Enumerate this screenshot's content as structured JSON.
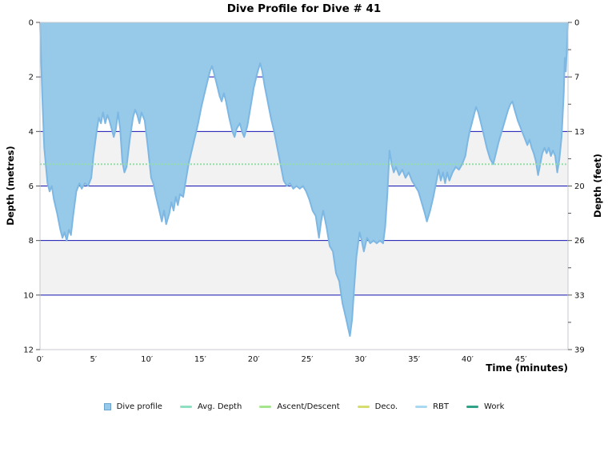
{
  "chart_data": {
    "type": "area",
    "title": "Dive Profile for Dive # 41",
    "xlabel": "Time (minutes)",
    "ylabel_left": "Depth (metres)",
    "ylabel_right": "Depth (feet)",
    "xlim": [
      0,
      49.4
    ],
    "ylim_metres": [
      0,
      12
    ],
    "y_axis_inverted": true,
    "x_tick_values": [
      0,
      5,
      10,
      15,
      20,
      25,
      30,
      35,
      40,
      45
    ],
    "x_tick_labels": [
      "0′",
      "5′",
      "10′",
      "15′",
      "20′",
      "25′",
      "30′",
      "35′",
      "40′",
      "45′"
    ],
    "y_tick_metres": [
      0,
      2,
      4,
      6,
      8,
      10,
      12
    ],
    "y_tick_feet_labels": [
      "0",
      "7",
      "13",
      "20",
      "26",
      "33",
      "39"
    ],
    "y_minor_tick_metres": [
      1,
      3,
      5,
      7,
      9,
      11
    ],
    "gridlines_m": [
      2,
      4,
      6,
      8,
      10
    ],
    "bands_m": [
      [
        4,
        6
      ],
      [
        8,
        10
      ]
    ],
    "avg_depth_m": 5.2,
    "grid": "horizontal-only",
    "legend_position": "bottom-center",
    "colors": {
      "profile_fill": "#97c9e8",
      "profile_line": "#7db7e3",
      "gridline": "#1212b0",
      "band": "#f2f2f2",
      "avg_depth_line": "#94dfa8",
      "plot_border": "#c5c9cf",
      "tick_text": "#111111"
    },
    "legend": [
      {
        "label": "Dive profile",
        "type": "square",
        "color": "#97c9e8",
        "border": "#68a2cd"
      },
      {
        "label": "Avg. Depth",
        "type": "line",
        "color": "#8fe0c0"
      },
      {
        "label": "Ascent/Descent",
        "type": "line",
        "color": "#a5e58d"
      },
      {
        "label": "Deco.",
        "type": "line",
        "color": "#d6dc6e"
      },
      {
        "label": "RBT",
        "type": "line",
        "color": "#a9d9f2"
      },
      {
        "label": "Work",
        "type": "line",
        "color": "#2fa287"
      }
    ],
    "series": [
      {
        "name": "Dive profile",
        "x_unit": "minutes",
        "y_unit": "metres",
        "points": [
          [
            0,
            0
          ],
          [
            0.2,
            2.6
          ],
          [
            0.4,
            4.6
          ],
          [
            0.7,
            5.9
          ],
          [
            0.9,
            6.2
          ],
          [
            1.1,
            6.0
          ],
          [
            1.3,
            6.5
          ],
          [
            1.6,
            7.0
          ],
          [
            1.9,
            7.6
          ],
          [
            2.1,
            7.9
          ],
          [
            2.3,
            7.7
          ],
          [
            2.5,
            8.0
          ],
          [
            2.7,
            7.6
          ],
          [
            2.9,
            7.8
          ],
          [
            3.1,
            7.1
          ],
          [
            3.4,
            6.2
          ],
          [
            3.7,
            5.9
          ],
          [
            3.9,
            6.1
          ],
          [
            4.2,
            5.9
          ],
          [
            4.5,
            6.0
          ],
          [
            4.8,
            5.7
          ],
          [
            5.0,
            4.9
          ],
          [
            5.3,
            4.0
          ],
          [
            5.5,
            3.5
          ],
          [
            5.7,
            3.7
          ],
          [
            5.9,
            3.3
          ],
          [
            6.1,
            3.7
          ],
          [
            6.3,
            3.4
          ],
          [
            6.5,
            3.6
          ],
          [
            6.7,
            3.9
          ],
          [
            6.9,
            4.2
          ],
          [
            7.1,
            3.9
          ],
          [
            7.3,
            3.3
          ],
          [
            7.5,
            3.9
          ],
          [
            7.7,
            5.1
          ],
          [
            7.9,
            5.5
          ],
          [
            8.1,
            5.3
          ],
          [
            8.4,
            4.3
          ],
          [
            8.7,
            3.5
          ],
          [
            8.9,
            3.2
          ],
          [
            9.1,
            3.4
          ],
          [
            9.3,
            3.7
          ],
          [
            9.5,
            3.3
          ],
          [
            9.8,
            3.6
          ],
          [
            10.1,
            4.6
          ],
          [
            10.4,
            5.7
          ],
          [
            10.6,
            5.9
          ],
          [
            10.8,
            6.3
          ],
          [
            11.1,
            6.8
          ],
          [
            11.4,
            7.3
          ],
          [
            11.6,
            6.9
          ],
          [
            11.8,
            7.4
          ],
          [
            12.1,
            7.0
          ],
          [
            12.3,
            6.6
          ],
          [
            12.5,
            6.9
          ],
          [
            12.7,
            6.4
          ],
          [
            12.9,
            6.7
          ],
          [
            13.1,
            6.3
          ],
          [
            13.4,
            6.4
          ],
          [
            13.6,
            5.9
          ],
          [
            13.9,
            5.2
          ],
          [
            14.2,
            4.7
          ],
          [
            14.5,
            4.2
          ],
          [
            14.8,
            3.7
          ],
          [
            15.1,
            3.1
          ],
          [
            15.4,
            2.6
          ],
          [
            15.7,
            2.1
          ],
          [
            15.9,
            1.8
          ],
          [
            16.1,
            1.6
          ],
          [
            16.3,
            1.9
          ],
          [
            16.5,
            2.2
          ],
          [
            16.8,
            2.7
          ],
          [
            17.0,
            2.9
          ],
          [
            17.2,
            2.6
          ],
          [
            17.4,
            2.9
          ],
          [
            17.7,
            3.5
          ],
          [
            18.0,
            4.0
          ],
          [
            18.2,
            4.2
          ],
          [
            18.4,
            3.9
          ],
          [
            18.7,
            3.7
          ],
          [
            18.9,
            4.0
          ],
          [
            19.1,
            4.2
          ],
          [
            19.4,
            3.8
          ],
          [
            19.7,
            3.1
          ],
          [
            20.0,
            2.4
          ],
          [
            20.3,
            1.9
          ],
          [
            20.6,
            1.5
          ],
          [
            20.8,
            1.8
          ],
          [
            21.0,
            2.3
          ],
          [
            21.3,
            2.9
          ],
          [
            21.6,
            3.5
          ],
          [
            21.9,
            4.0
          ],
          [
            22.2,
            4.6
          ],
          [
            22.5,
            5.2
          ],
          [
            22.8,
            5.8
          ],
          [
            23.1,
            6.0
          ],
          [
            23.4,
            5.9
          ],
          [
            23.7,
            6.1
          ],
          [
            24.0,
            6.0
          ],
          [
            24.3,
            6.1
          ],
          [
            24.6,
            6.0
          ],
          [
            24.9,
            6.2
          ],
          [
            25.2,
            6.5
          ],
          [
            25.5,
            6.9
          ],
          [
            25.8,
            7.1
          ],
          [
            26.1,
            7.9
          ],
          [
            26.3,
            7.3
          ],
          [
            26.5,
            6.9
          ],
          [
            26.8,
            7.5
          ],
          [
            27.1,
            8.2
          ],
          [
            27.4,
            8.4
          ],
          [
            27.7,
            9.2
          ],
          [
            28.0,
            9.5
          ],
          [
            28.3,
            10.3
          ],
          [
            28.6,
            10.8
          ],
          [
            29.0,
            11.5
          ],
          [
            29.2,
            10.9
          ],
          [
            29.4,
            9.7
          ],
          [
            29.6,
            8.6
          ],
          [
            29.9,
            7.7
          ],
          [
            30.1,
            8.0
          ],
          [
            30.3,
            8.4
          ],
          [
            30.6,
            7.9
          ],
          [
            30.9,
            8.1
          ],
          [
            31.2,
            8.0
          ],
          [
            31.5,
            8.1
          ],
          [
            31.8,
            8.0
          ],
          [
            32.1,
            8.1
          ],
          [
            32.3,
            7.5
          ],
          [
            32.5,
            6.3
          ],
          [
            32.7,
            4.7
          ],
          [
            32.9,
            5.2
          ],
          [
            33.1,
            5.5
          ],
          [
            33.3,
            5.3
          ],
          [
            33.6,
            5.6
          ],
          [
            33.9,
            5.4
          ],
          [
            34.2,
            5.7
          ],
          [
            34.5,
            5.5
          ],
          [
            34.8,
            5.8
          ],
          [
            35.1,
            6.0
          ],
          [
            35.4,
            6.2
          ],
          [
            35.7,
            6.6
          ],
          [
            36.0,
            7.0
          ],
          [
            36.2,
            7.3
          ],
          [
            36.5,
            6.9
          ],
          [
            36.8,
            6.4
          ],
          [
            37.1,
            5.8
          ],
          [
            37.3,
            5.4
          ],
          [
            37.5,
            5.8
          ],
          [
            37.7,
            5.5
          ],
          [
            37.9,
            5.9
          ],
          [
            38.1,
            5.5
          ],
          [
            38.3,
            5.8
          ],
          [
            38.6,
            5.5
          ],
          [
            38.9,
            5.3
          ],
          [
            39.2,
            5.4
          ],
          [
            39.5,
            5.2
          ],
          [
            39.8,
            4.9
          ],
          [
            40.0,
            4.4
          ],
          [
            40.2,
            4.0
          ],
          [
            40.4,
            3.7
          ],
          [
            40.6,
            3.4
          ],
          [
            40.8,
            3.1
          ],
          [
            41.0,
            3.3
          ],
          [
            41.2,
            3.6
          ],
          [
            41.5,
            4.1
          ],
          [
            41.8,
            4.6
          ],
          [
            42.1,
            5.0
          ],
          [
            42.4,
            5.2
          ],
          [
            42.6,
            4.9
          ],
          [
            42.9,
            4.4
          ],
          [
            43.2,
            4.0
          ],
          [
            43.5,
            3.6
          ],
          [
            43.8,
            3.2
          ],
          [
            44.0,
            3.0
          ],
          [
            44.2,
            2.9
          ],
          [
            44.4,
            3.2
          ],
          [
            44.7,
            3.6
          ],
          [
            45.0,
            3.9
          ],
          [
            45.3,
            4.2
          ],
          [
            45.6,
            4.5
          ],
          [
            45.8,
            4.3
          ],
          [
            46.0,
            4.6
          ],
          [
            46.2,
            4.8
          ],
          [
            46.4,
            5.1
          ],
          [
            46.6,
            5.6
          ],
          [
            46.8,
            5.2
          ],
          [
            47.0,
            4.8
          ],
          [
            47.2,
            4.6
          ],
          [
            47.4,
            4.8
          ],
          [
            47.6,
            4.6
          ],
          [
            47.8,
            4.9
          ],
          [
            48.0,
            4.7
          ],
          [
            48.2,
            4.9
          ],
          [
            48.4,
            5.5
          ],
          [
            48.6,
            5.0
          ],
          [
            48.8,
            4.2
          ],
          [
            49.0,
            2.6
          ],
          [
            49.1,
            1.3
          ],
          [
            49.2,
            1.8
          ],
          [
            49.3,
            0.9
          ],
          [
            49.4,
            0.0
          ]
        ]
      }
    ]
  }
}
